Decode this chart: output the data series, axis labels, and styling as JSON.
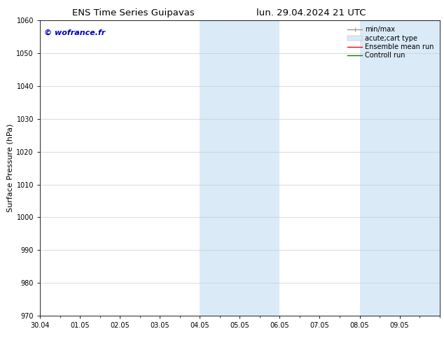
{
  "title_left": "ENS Time Series Guipavas",
  "title_right": "lun. 29.04.2024 21 UTC",
  "ylabel": "Surface Pressure (hPa)",
  "xlim_start": 0,
  "xlim_end": 10,
  "ylim": [
    970,
    1060
  ],
  "yticks": [
    970,
    980,
    990,
    1000,
    1010,
    1020,
    1030,
    1040,
    1050,
    1060
  ],
  "xtick_labels": [
    "30.04",
    "01.05",
    "02.05",
    "03.05",
    "04.05",
    "05.05",
    "06.05",
    "07.05",
    "08.05",
    "09.05"
  ],
  "shaded_bands": [
    {
      "x_start": 4,
      "x_end": 5,
      "color": "#daeaf7"
    },
    {
      "x_start": 5,
      "x_end": 6,
      "color": "#daeaf7"
    },
    {
      "x_start": 8,
      "x_end": 9,
      "color": "#daeaf7"
    },
    {
      "x_start": 9,
      "x_end": 10,
      "color": "#daeaf7"
    }
  ],
  "watermark_text": "© wofrance.fr",
  "watermark_color": "#0000bb",
  "legend_entries": [
    {
      "label": "min/max",
      "color": "#999999",
      "lw": 1.0
    },
    {
      "label": "acute;cart type",
      "color": "#daeaf7",
      "lw": 8
    },
    {
      "label": "Ensemble mean run",
      "color": "red",
      "lw": 1.0
    },
    {
      "label": "Controll run",
      "color": "green",
      "lw": 1.0
    }
  ],
  "background_color": "#ffffff",
  "grid_color": "#cccccc",
  "title_fontsize": 9.5,
  "tick_fontsize": 7,
  "ylabel_fontsize": 8,
  "watermark_fontsize": 8,
  "legend_fontsize": 7
}
